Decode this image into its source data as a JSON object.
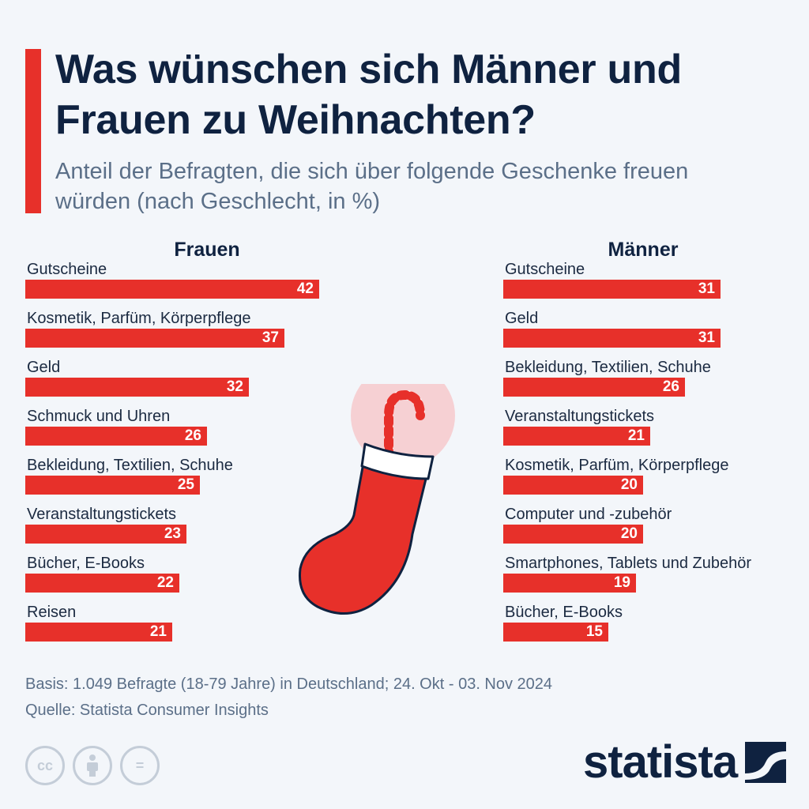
{
  "title": "Was wünschen sich Männer und Frauen zu Weihnachten?",
  "subtitle": "Anteil der Befragten, die sich über folgende Geschenke freuen würden (nach Geschlecht, in %)",
  "colors": {
    "accent": "#e7302a",
    "navy": "#0f2240",
    "muted": "#5b6f88",
    "background": "#f3f6fa"
  },
  "chart_data": [
    {
      "type": "bar",
      "title": "Frauen",
      "categories": [
        "Gutscheine",
        "Kosmetik, Parfüm, Körperpflege",
        "Geld",
        "Schmuck und Uhren",
        "Bekleidung, Textilien, Schuhe",
        "Veranstaltungstickets",
        "Bücher, E-Books",
        "Reisen"
      ],
      "values": [
        42,
        37,
        32,
        26,
        25,
        23,
        22,
        21
      ],
      "orientation": "horizontal",
      "unit": "%",
      "color": "#e7302a"
    },
    {
      "type": "bar",
      "title": "Männer",
      "categories": [
        "Gutscheine",
        "Geld",
        "Bekleidung, Textilien, Schuhe",
        "Veranstaltungstickets",
        "Kosmetik, Parfüm, Körperpflege",
        "Computer und -zubehör",
        "Smartphones, Tablets und Zubehör",
        "Bücher, E-Books"
      ],
      "values": [
        31,
        31,
        26,
        21,
        20,
        20,
        19,
        15
      ],
      "orientation": "horizontal",
      "unit": "%",
      "color": "#e7302a"
    }
  ],
  "footer": {
    "basis": "Basis: 1.049 Befragte (18-79 Jahre) in Deutschland; 24. Okt - 03. Nov 2024",
    "source": "Quelle: Statista Consumer Insights",
    "license_icons": [
      "cc-icon",
      "attribution-icon",
      "no-derivatives-icon"
    ],
    "cc_label": "cc",
    "nd_label": "="
  },
  "logo": {
    "text": "statista"
  },
  "illustration": {
    "icons": [
      "christmas-stocking-icon",
      "candy-cane-icon"
    ]
  }
}
